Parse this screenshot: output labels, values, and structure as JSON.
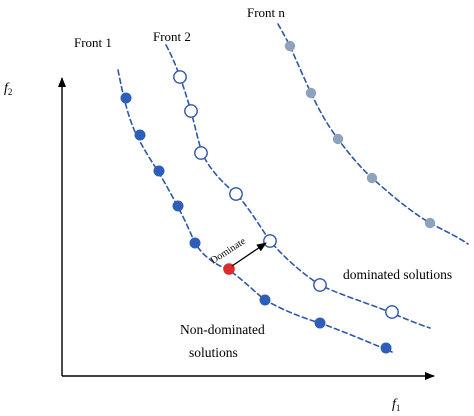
{
  "labels": {
    "front_1": "Front 1",
    "front_2": "Front 2",
    "front_n": "Front n",
    "f2": "f",
    "f2_sub": "2",
    "f1": "f",
    "f1_sub": "1",
    "dominate": "Dominate",
    "dominated": "dominated solutions",
    "non_dominated_1": "Non-dominated",
    "non_dominated_2": "solutions"
  },
  "colors": {
    "front_1_fill": "#2f5eb8",
    "front_1_line": "#2f56a8",
    "front_2_stroke": "#2f56a8",
    "front_2_fill": "#ffffff",
    "front_n_fill": "#8fa2bd",
    "front_n_line": "#2f56a8",
    "highlight": "#e02b2b",
    "arrow": "#000000"
  }
}
